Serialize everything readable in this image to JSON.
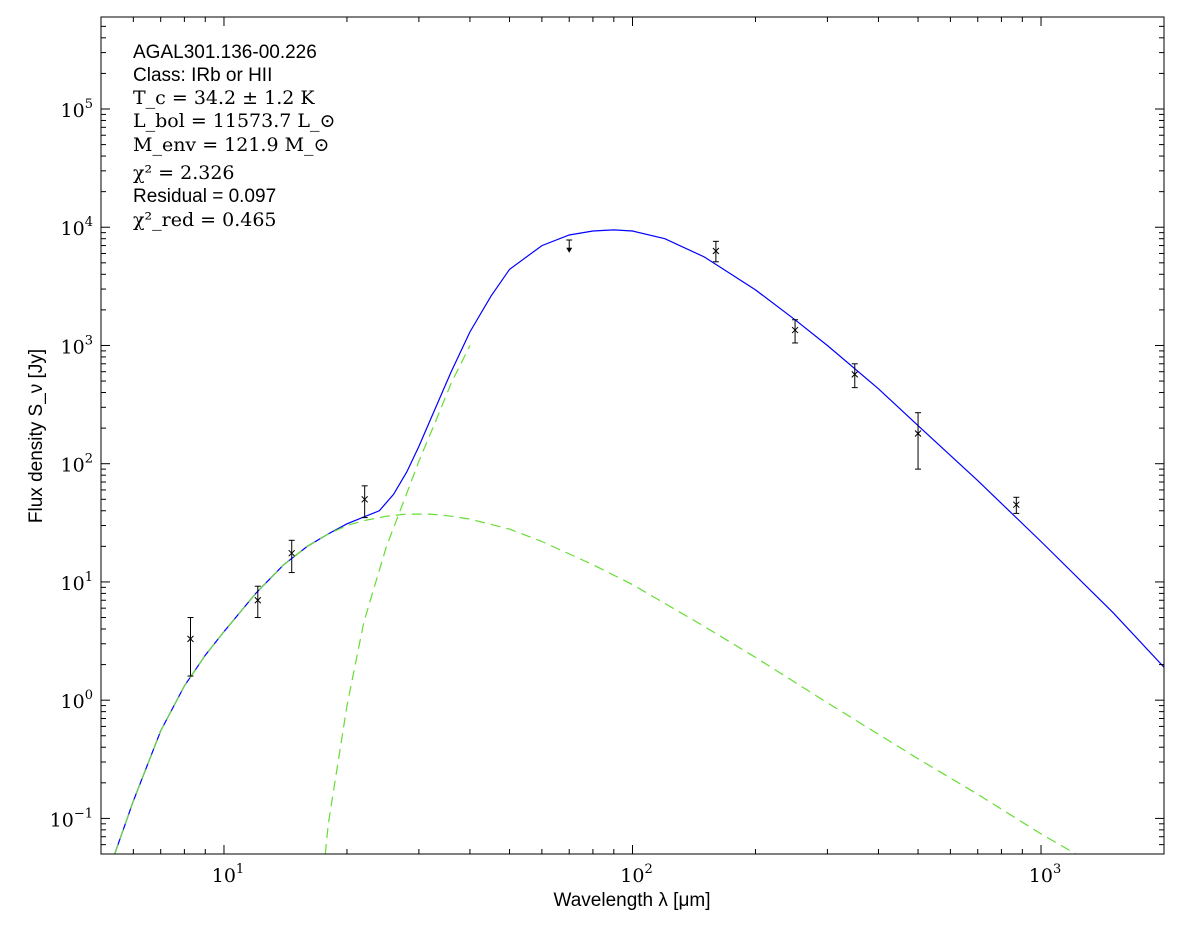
{
  "chart_data": {
    "type": "scatter",
    "title": "",
    "xlabel": "Wavelength λ [μm]",
    "ylabel": "Flux density S_ν [Jy]",
    "xscale": "log",
    "yscale": "log",
    "xlim": [
      5,
      2000
    ],
    "ylim": [
      0.05,
      600000
    ],
    "x_tick_labels": [
      {
        "value": 10,
        "base": "10",
        "exp": "1"
      },
      {
        "value": 100,
        "base": "10",
        "exp": "2"
      },
      {
        "value": 1000,
        "base": "10",
        "exp": "3"
      }
    ],
    "y_tick_labels": [
      {
        "value": 0.1,
        "base": "10",
        "exp": "−1"
      },
      {
        "value": 1,
        "base": "10",
        "exp": "0"
      },
      {
        "value": 10,
        "base": "10",
        "exp": "1"
      },
      {
        "value": 100,
        "base": "10",
        "exp": "2"
      },
      {
        "value": 1000,
        "base": "10",
        "exp": "3"
      },
      {
        "value": 10000,
        "base": "10",
        "exp": "4"
      },
      {
        "value": 100000,
        "base": "10",
        "exp": "5"
      }
    ],
    "annotations": {
      "source": "AGAL301.136-00.226",
      "class": "Class: IRb or HII",
      "tc": "T_c = 34.2 ± 1.2 K",
      "lbol": "L_bol = 11573.7 L_⊙",
      "menv": "M_env = 121.9 M_⊙",
      "chi2": "χ² = 2.326",
      "residual": "Residual = 0.097",
      "chi2red": "χ²_red = 0.465"
    },
    "data_points": [
      {
        "x": 8.28,
        "y": 3.3,
        "ylo": 1.6,
        "yhi": 5.0
      },
      {
        "x": 12.1,
        "y": 7.0,
        "ylo": 5.0,
        "yhi": 9.2
      },
      {
        "x": 14.65,
        "y": 17.5,
        "ylo": 12.0,
        "yhi": 22.5
      },
      {
        "x": 22.1,
        "y": 50.0,
        "ylo": 35.0,
        "yhi": 65.0
      },
      {
        "x": 160,
        "y": 6300,
        "ylo": 5100,
        "yhi": 7600
      },
      {
        "x": 250,
        "y": 1350,
        "ylo": 1050,
        "yhi": 1650
      },
      {
        "x": 350,
        "y": 570,
        "ylo": 440,
        "yhi": 700
      },
      {
        "x": 500,
        "y": 180,
        "ylo": 90,
        "yhi": 270
      },
      {
        "x": 870,
        "y": 45,
        "ylo": 38,
        "yhi": 52
      }
    ],
    "upper_limits": [
      {
        "x": 70,
        "y": 7800,
        "arrow_to": 6200
      }
    ],
    "series": [
      {
        "style": "solid",
        "color": "#0000ff",
        "x": [
          5.4,
          6.0,
          7.0,
          8.0,
          9.0,
          10.0,
          12.0,
          14.0,
          16.0,
          18.0,
          20.0,
          22.0,
          24.0,
          26.0,
          28.0,
          30.0,
          33.0,
          36.0,
          40.0,
          45.0,
          50.0,
          60.0,
          70.0,
          80.0,
          90.0,
          100,
          120,
          150,
          200,
          250,
          300,
          400,
          500,
          700,
          1000,
          1500,
          2000
        ],
        "y": [
          0.05,
          0.14,
          0.55,
          1.32,
          2.4,
          3.8,
          8.1,
          14.0,
          20.0,
          25.5,
          31.0,
          35.5,
          40.0,
          55.0,
          85.0,
          140,
          300,
          600,
          1300,
          2600,
          4400,
          7000,
          8600,
          9300,
          9500,
          9300,
          8000,
          5600,
          2950,
          1650,
          1000,
          430,
          210,
          72,
          22,
          5.5,
          1.9
        ]
      },
      {
        "style": "dashed",
        "color": "#66dd33",
        "x": [
          5.4,
          6.0,
          7.0,
          8.0,
          9.0,
          10.0,
          12.0,
          14.0,
          16.0,
          18.0,
          20.0,
          22.0,
          25.0,
          28.0,
          32.0,
          36.0,
          40.0,
          50.0,
          60.0,
          80.0,
          100,
          150,
          200,
          300,
          500,
          700,
          1000,
          1500,
          2000
        ],
        "y": [
          0.05,
          0.14,
          0.55,
          1.32,
          2.4,
          3.8,
          8.1,
          14.0,
          20.0,
          25.5,
          30.0,
          33.0,
          36.0,
          37.5,
          37.5,
          36.0,
          34.0,
          28.0,
          22.0,
          14.0,
          9.5,
          4.2,
          2.3,
          0.95,
          0.32,
          0.16,
          0.074,
          0.033,
          0.045
        ]
      },
      {
        "style": "dashed",
        "color": "#66dd33",
        "x": [
          17.7,
          18.0,
          20.0,
          22.0,
          25.0,
          28.0,
          30.0,
          33.0,
          36.0,
          40.0
        ],
        "y": [
          0.05,
          0.09,
          0.9,
          4.6,
          20.0,
          56.0,
          105,
          230,
          480,
          1000
        ]
      }
    ]
  }
}
